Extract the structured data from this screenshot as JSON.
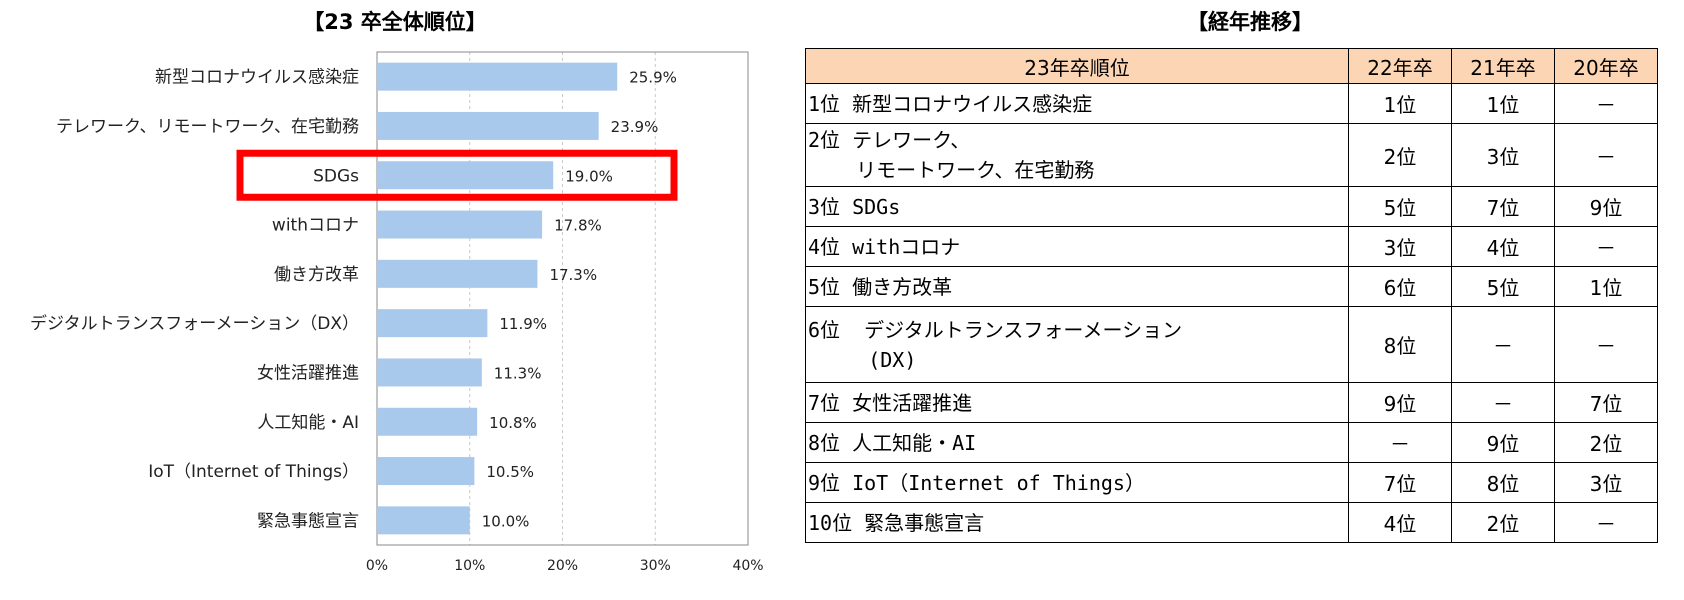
{
  "chart_title": "【23 卒全体順位】",
  "table_title": "【経年推移】",
  "chart_data": {
    "type": "bar",
    "orientation": "horizontal",
    "title": "【23 卒全体順位】",
    "categories": [
      "新型コロナウイルス感染症",
      "テレワーク、リモートワーク、在宅勤務",
      "SDGs",
      "withコロナ",
      "働き方改革",
      "デジタルトランスフォーメーション（DX）",
      "女性活躍推進",
      "人工知能・AI",
      "IoT（Internet of Things）",
      "緊急事態宣言"
    ],
    "values": [
      25.9,
      23.9,
      19.0,
      17.8,
      17.3,
      11.9,
      11.3,
      10.8,
      10.5,
      10.0
    ],
    "value_labels": [
      "25.9%",
      "23.9%",
      "19.0%",
      "17.8%",
      "17.3%",
      "11.9%",
      "11.3%",
      "10.8%",
      "10.5%",
      "10.0%"
    ],
    "xlim": [
      0,
      40
    ],
    "xticks": [
      "0%",
      "10%",
      "20%",
      "30%",
      "40%"
    ],
    "grid": "vertical dashed",
    "bar_color": "#a9c9ec",
    "highlight": {
      "category": "SDGs",
      "color": "#ff0000"
    }
  },
  "table": {
    "headers": [
      "23年卒順位",
      "22年卒",
      "21年卒",
      "20年卒"
    ],
    "rows": [
      {
        "rank": "1位 新型コロナウイルス感染症",
        "y22": "1位",
        "y21": "1位",
        "y20": "－"
      },
      {
        "rank": "2位 テレワーク、\n    リモートワーク、在宅勤務",
        "y22": "2位",
        "y21": "3位",
        "y20": "－"
      },
      {
        "rank": "3位 SDGs",
        "y22": "5位",
        "y21": "7位",
        "y20": "9位"
      },
      {
        "rank": "4位 withコロナ",
        "y22": "3位",
        "y21": "4位",
        "y20": "－"
      },
      {
        "rank": "5位 働き方改革",
        "y22": "6位",
        "y21": "5位",
        "y20": "1位"
      },
      {
        "rank": "6位  デジタルトランスフォーメーション\n     (DX)",
        "y22": "8位",
        "y21": "－",
        "y20": "－"
      },
      {
        "rank": "7位 女性活躍推進",
        "y22": "9位",
        "y21": "－",
        "y20": "7位"
      },
      {
        "rank": "8位 人工知能・AI",
        "y22": "－",
        "y21": "9位",
        "y20": "2位"
      },
      {
        "rank": "9位 IoT（Internet of Things）",
        "y22": "7位",
        "y21": "8位",
        "y20": "3位"
      },
      {
        "rank": "10位 緊急事態宣言",
        "y22": "4位",
        "y21": "2位",
        "y20": "－"
      }
    ]
  }
}
